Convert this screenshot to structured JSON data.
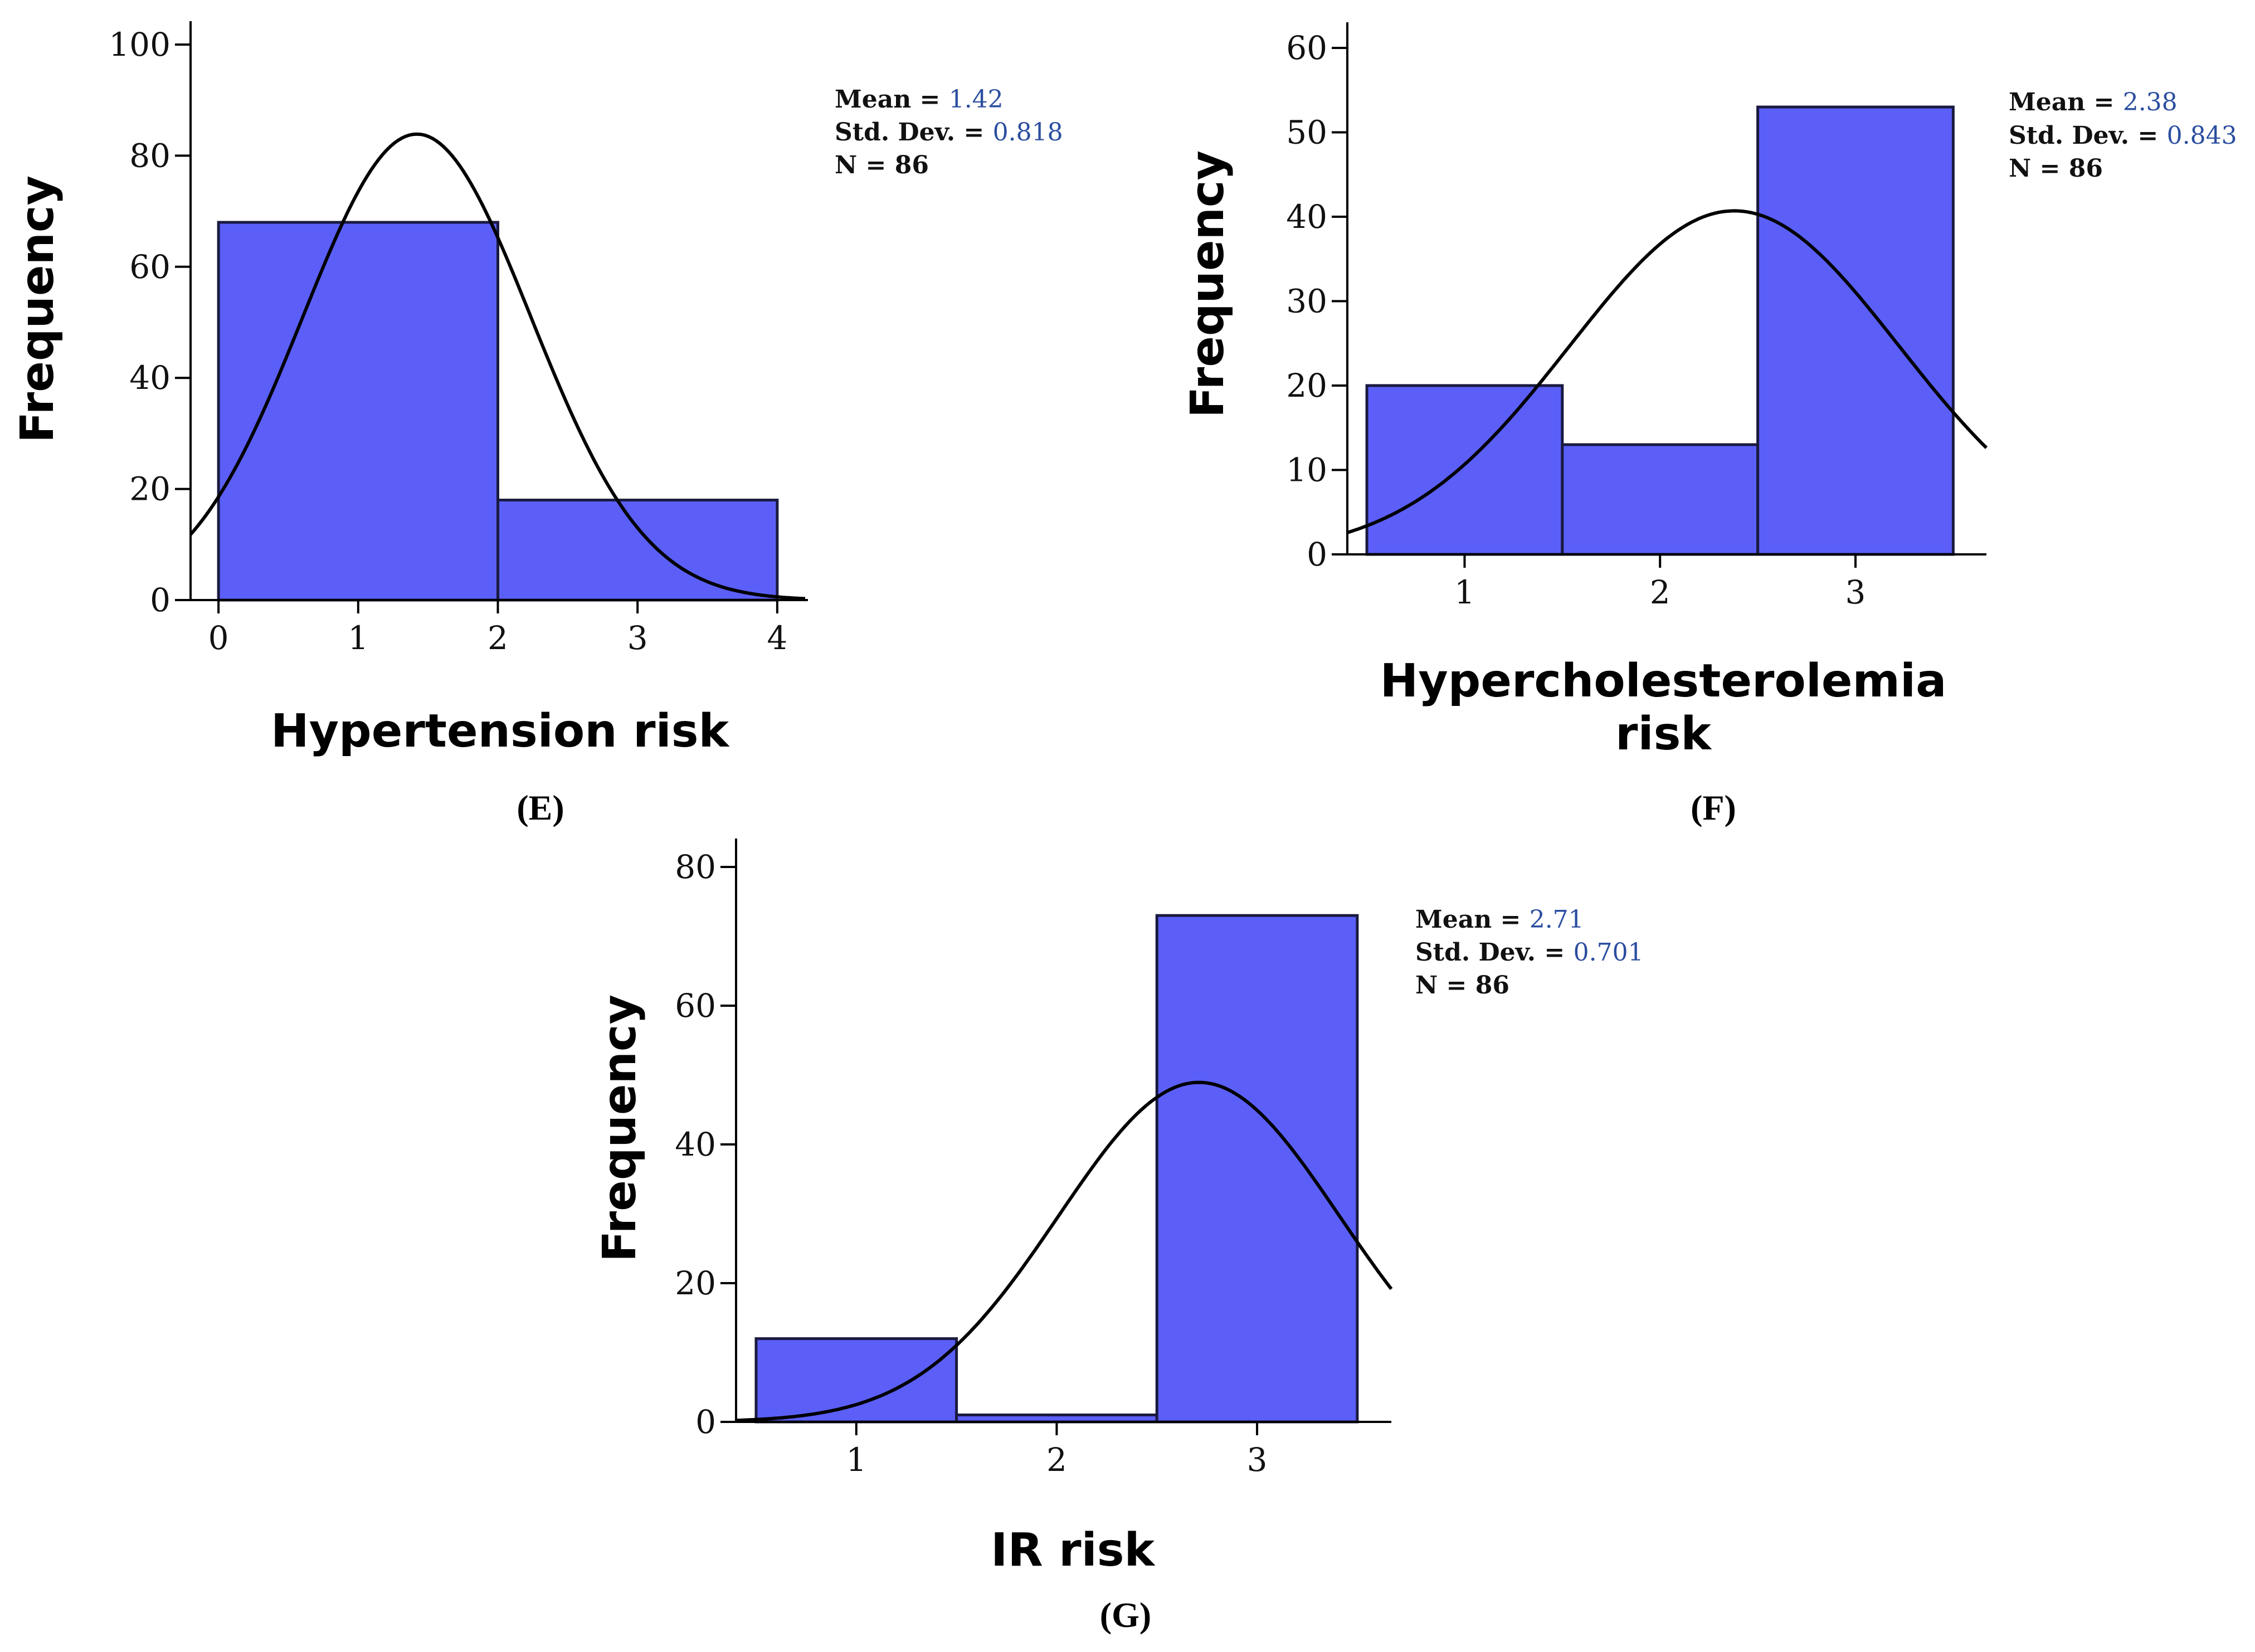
{
  "chart_data": [
    {
      "id": "E",
      "type": "bar",
      "panel_label": "(E)",
      "title": "",
      "xlabel": "Hypertension risk",
      "ylabel": "Frequency",
      "bin_edges": [
        0,
        2,
        4
      ],
      "values": [
        68,
        18
      ],
      "xlim": [
        -0.2,
        4.2
      ],
      "ylim": [
        0,
        100
      ],
      "xticks": [
        0,
        1,
        2,
        3,
        4
      ],
      "yticks": [
        0,
        20,
        40,
        60,
        80,
        100
      ],
      "fit_curve": "normal",
      "stats": {
        "mean_label": "Mean = ",
        "mean": "1.42",
        "sd_label": "Std. Dev. = ",
        "sd": "0.818",
        "n_label": "N = 86"
      }
    },
    {
      "id": "F",
      "type": "bar",
      "panel_label": "(F)",
      "title": "",
      "xlabel": "Hypercholesterolemia risk",
      "xlabel_lines": [
        "Hypercholesterolemia",
        "risk"
      ],
      "ylabel": "Frequency",
      "bin_edges": [
        0.5,
        1.5,
        2.5,
        3.5
      ],
      "values": [
        20,
        13,
        53
      ],
      "xlim": [
        0.4,
        3.67
      ],
      "ylim": [
        0,
        60
      ],
      "xticks": [
        1,
        2,
        3
      ],
      "yticks": [
        0,
        10,
        20,
        30,
        40,
        50,
        60
      ],
      "fit_curve": "normal",
      "stats": {
        "mean_label": "Mean = ",
        "mean": "2.38",
        "sd_label": "Std. Dev. = ",
        "sd": "0.843",
        "n_label": "N = 86"
      }
    },
    {
      "id": "G",
      "type": "bar",
      "panel_label": "(G)",
      "title": "",
      "xlabel": "IR risk",
      "ylabel": "Frequency",
      "bin_edges": [
        0.5,
        1.5,
        2.5,
        3.5
      ],
      "values": [
        12,
        1,
        73
      ],
      "xlim": [
        0.4,
        3.67
      ],
      "ylim": [
        0,
        80
      ],
      "xticks": [
        1,
        2,
        3
      ],
      "yticks": [
        0,
        20,
        40,
        60,
        80
      ],
      "fit_curve": "normal",
      "stats": {
        "mean_label": "Mean = ",
        "mean": "2.71",
        "sd_label": "Std. Dev. = ",
        "sd": "0.701",
        "n_label": "N = 86"
      }
    }
  ],
  "colors": {
    "bar_fill": "#5b5ff8",
    "bar_stroke": "#1a1a40",
    "curve": "#000000",
    "stat_value": "#2b4ea0"
  }
}
